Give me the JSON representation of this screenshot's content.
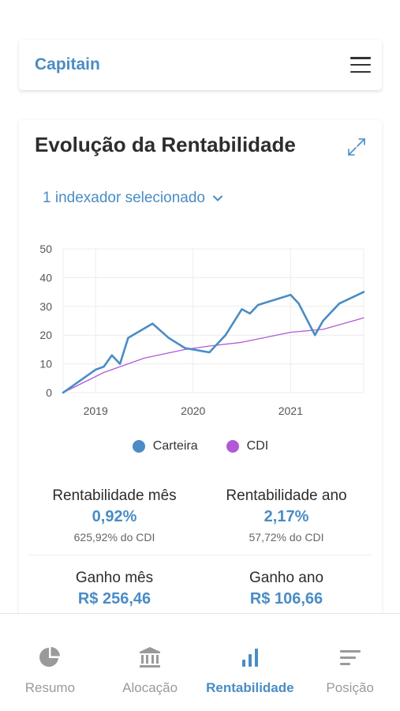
{
  "app": {
    "brand": "Capitain"
  },
  "card": {
    "title": "Evolução da Rentabilidade",
    "selector_label": "1 indexador selecionado"
  },
  "chart_data": {
    "type": "line",
    "title": "",
    "xlabel": "",
    "ylabel": "",
    "ylim": [
      0,
      50
    ],
    "yticks": [
      "0",
      "10",
      "20",
      "30",
      "40",
      "50"
    ],
    "xticks": [
      "2019",
      "2020",
      "2021"
    ],
    "grid": true,
    "legend_position": "bottom",
    "series": [
      {
        "name": "Carteira",
        "color": "#4a8cc4",
        "points": [
          [
            "2018-08",
            0
          ],
          [
            "2018-12",
            8
          ],
          [
            "2019-01",
            9
          ],
          [
            "2019-02",
            13
          ],
          [
            "2019-03",
            10
          ],
          [
            "2019-04",
            19
          ],
          [
            "2019-07",
            24
          ],
          [
            "2019-09",
            19
          ],
          [
            "2019-11",
            15.5
          ],
          [
            "2020-02",
            14
          ],
          [
            "2020-04",
            20
          ],
          [
            "2020-06",
            29
          ],
          [
            "2020-07",
            27.5
          ],
          [
            "2020-08",
            30.5
          ],
          [
            "2020-12",
            34
          ],
          [
            "2021-01",
            31
          ],
          [
            "2021-03",
            20
          ],
          [
            "2021-04",
            25
          ],
          [
            "2021-06",
            31
          ],
          [
            "2021-09",
            35
          ]
        ]
      },
      {
        "name": "CDI",
        "color": "#b05ad6",
        "points": [
          [
            "2018-08",
            0
          ],
          [
            "2019-01",
            7
          ],
          [
            "2019-06",
            12
          ],
          [
            "2019-11",
            15
          ],
          [
            "2020-02",
            16.2
          ],
          [
            "2020-06",
            17.5
          ],
          [
            "2020-12",
            21
          ],
          [
            "2021-04",
            22
          ],
          [
            "2021-09",
            26
          ]
        ]
      }
    ]
  },
  "stats": {
    "rent_mes": {
      "label": "Rentabilidade mês",
      "value": "0,92%",
      "sub": "625,92% do CDI"
    },
    "rent_ano": {
      "label": "Rentabilidade ano",
      "value": "2,17%",
      "sub": "57,72% do CDI"
    },
    "ganho_mes": {
      "label": "Ganho mês",
      "value": "R$ 256,46"
    },
    "ganho_ano": {
      "label": "Ganho ano",
      "value": "R$ 106,66"
    }
  },
  "nav": {
    "items": [
      {
        "label": "Resumo",
        "icon": "pie-chart-icon"
      },
      {
        "label": "Alocação",
        "icon": "bank-icon"
      },
      {
        "label": "Rentabilidade",
        "icon": "bar-chart-icon"
      },
      {
        "label": "Posição",
        "icon": "list-icon"
      }
    ],
    "active": "Rentabilidade"
  },
  "colors": {
    "accent": "#4a8cc4",
    "cdi": "#b05ad6",
    "inactive": "#9a9a9a"
  }
}
